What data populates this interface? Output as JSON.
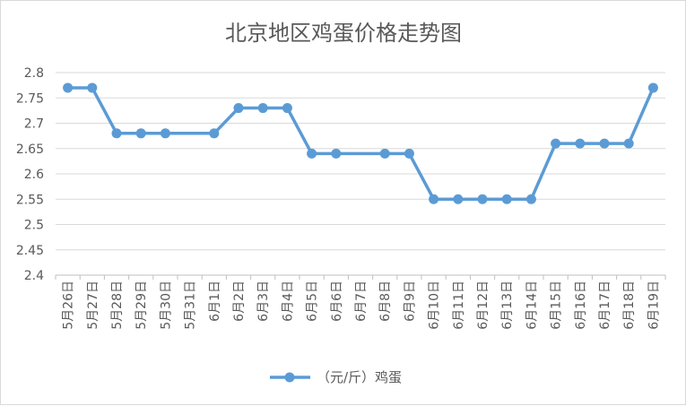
{
  "chart_data": {
    "type": "line",
    "title": "北京地区鸡蛋价格走势图",
    "xlabel": "",
    "ylabel": "",
    "categories": [
      "5月26日",
      "5月27日",
      "5月28日",
      "5月29日",
      "5月30日",
      "5月31日",
      "6月1日",
      "6月2日",
      "6月3日",
      "6月4日",
      "6月5日",
      "6月6日",
      "6月7日",
      "6月8日",
      "6月9日",
      "6月10日",
      "6月11日",
      "6月12日",
      "6月13日",
      "6月14日",
      "6月15日",
      "6月16日",
      "6月17日",
      "6月18日",
      "6月19日"
    ],
    "series": [
      {
        "name": "（元/斤）鸡蛋",
        "values": [
          2.77,
          2.77,
          2.68,
          2.68,
          2.68,
          null,
          2.68,
          2.73,
          2.73,
          2.73,
          2.64,
          2.64,
          null,
          2.64,
          2.64,
          2.55,
          2.55,
          2.55,
          2.55,
          2.55,
          2.66,
          2.66,
          2.66,
          2.66,
          2.77
        ]
      }
    ],
    "ylim": [
      2.4,
      2.8
    ],
    "yticks": [
      "2.4",
      "2.45",
      "2.5",
      "2.55",
      "2.6",
      "2.65",
      "2.7",
      "2.75",
      "2.8"
    ],
    "grid": true,
    "legend_position": "bottom",
    "colors": {
      "series": "#5b9bd5",
      "grid": "#d9d9d9",
      "axis": "#bfbfbf"
    }
  }
}
